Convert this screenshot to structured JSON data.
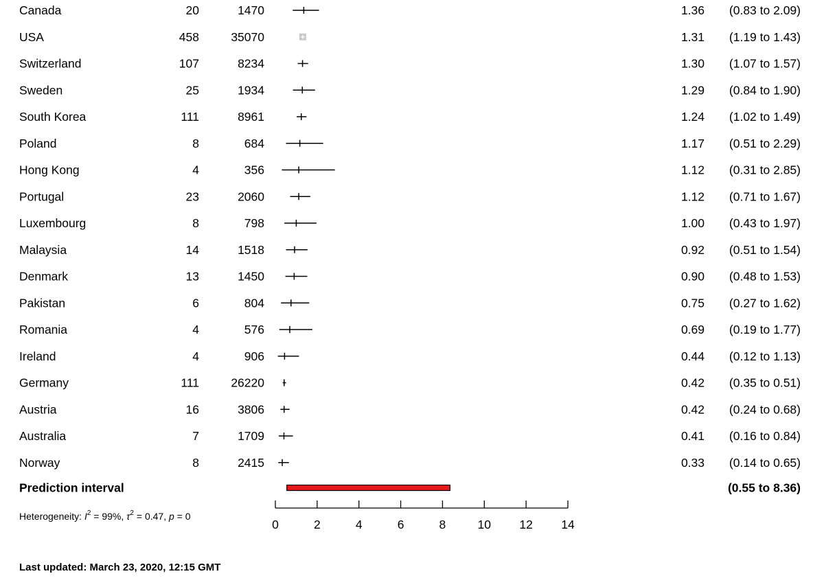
{
  "chart_data": {
    "type": "forest",
    "x_ticks": [
      0,
      2,
      4,
      6,
      8,
      10,
      12,
      14
    ],
    "xlim": [
      0,
      14
    ],
    "rows": [
      {
        "label": "Canada",
        "n1": "20",
        "n2": "1470",
        "est": 1.36,
        "lo": 0.83,
        "hi": 2.09,
        "est_text": "1.36",
        "ci_text": "(0.83 to 2.09)",
        "marker": "tick"
      },
      {
        "label": "USA",
        "n1": "458",
        "n2": "35070",
        "est": 1.31,
        "lo": 1.19,
        "hi": 1.43,
        "est_text": "1.31",
        "ci_text": "(1.19 to 1.43)",
        "marker": "box"
      },
      {
        "label": "Switzerland",
        "n1": "107",
        "n2": "8234",
        "est": 1.3,
        "lo": 1.07,
        "hi": 1.57,
        "est_text": "1.30",
        "ci_text": "(1.07 to 1.57)",
        "marker": "tick"
      },
      {
        "label": "Sweden",
        "n1": "25",
        "n2": "1934",
        "est": 1.29,
        "lo": 0.84,
        "hi": 1.9,
        "est_text": "1.29",
        "ci_text": "(0.84 to 1.90)",
        "marker": "tick"
      },
      {
        "label": "South Korea",
        "n1": "111",
        "n2": "8961",
        "est": 1.24,
        "lo": 1.02,
        "hi": 1.49,
        "est_text": "1.24",
        "ci_text": "(1.02 to 1.49)",
        "marker": "tick"
      },
      {
        "label": "Poland",
        "n1": "8",
        "n2": "684",
        "est": 1.17,
        "lo": 0.51,
        "hi": 2.29,
        "est_text": "1.17",
        "ci_text": "(0.51 to 2.29)",
        "marker": "tick"
      },
      {
        "label": "Hong Kong",
        "n1": "4",
        "n2": "356",
        "est": 1.12,
        "lo": 0.31,
        "hi": 2.85,
        "est_text": "1.12",
        "ci_text": "(0.31 to 2.85)",
        "marker": "tick"
      },
      {
        "label": "Portugal",
        "n1": "23",
        "n2": "2060",
        "est": 1.12,
        "lo": 0.71,
        "hi": 1.67,
        "est_text": "1.12",
        "ci_text": "(0.71 to 1.67)",
        "marker": "tick"
      },
      {
        "label": "Luxembourg",
        "n1": "8",
        "n2": "798",
        "est": 1.0,
        "lo": 0.43,
        "hi": 1.97,
        "est_text": "1.00",
        "ci_text": "(0.43 to 1.97)",
        "marker": "tick"
      },
      {
        "label": "Malaysia",
        "n1": "14",
        "n2": "1518",
        "est": 0.92,
        "lo": 0.51,
        "hi": 1.54,
        "est_text": "0.92",
        "ci_text": "(0.51 to 1.54)",
        "marker": "tick"
      },
      {
        "label": "Denmark",
        "n1": "13",
        "n2": "1450",
        "est": 0.9,
        "lo": 0.48,
        "hi": 1.53,
        "est_text": "0.90",
        "ci_text": "(0.48 to 1.53)",
        "marker": "tick"
      },
      {
        "label": "Pakistan",
        "n1": "6",
        "n2": "804",
        "est": 0.75,
        "lo": 0.27,
        "hi": 1.62,
        "est_text": "0.75",
        "ci_text": "(0.27 to 1.62)",
        "marker": "tick"
      },
      {
        "label": "Romania",
        "n1": "4",
        "n2": "576",
        "est": 0.69,
        "lo": 0.19,
        "hi": 1.77,
        "est_text": "0.69",
        "ci_text": "(0.19 to 1.77)",
        "marker": "tick"
      },
      {
        "label": "Ireland",
        "n1": "4",
        "n2": "906",
        "est": 0.44,
        "lo": 0.12,
        "hi": 1.13,
        "est_text": "0.44",
        "ci_text": "(0.12 to 1.13)",
        "marker": "tick"
      },
      {
        "label": "Germany",
        "n1": "111",
        "n2": "26220",
        "est": 0.42,
        "lo": 0.35,
        "hi": 0.51,
        "est_text": "0.42",
        "ci_text": "(0.35 to 0.51)",
        "marker": "tick"
      },
      {
        "label": "Austria",
        "n1": "16",
        "n2": "3806",
        "est": 0.42,
        "lo": 0.24,
        "hi": 0.68,
        "est_text": "0.42",
        "ci_text": "(0.24 to 0.68)",
        "marker": "tick"
      },
      {
        "label": "Australia",
        "n1": "7",
        "n2": "1709",
        "est": 0.41,
        "lo": 0.16,
        "hi": 0.84,
        "est_text": "0.41",
        "ci_text": "(0.16 to 0.84)",
        "marker": "tick"
      },
      {
        "label": "Norway",
        "n1": "8",
        "n2": "2415",
        "est": 0.33,
        "lo": 0.14,
        "hi": 0.65,
        "est_text": "0.33",
        "ci_text": "(0.14 to 0.65)",
        "marker": "tick"
      }
    ],
    "prediction_interval": {
      "label": "Prediction interval",
      "lo": 0.55,
      "hi": 8.36,
      "ci_text": "(0.55 to 8.36)",
      "color": "#e8191b"
    },
    "heterogeneity": {
      "prefix": "Heterogeneity: ",
      "i2_symbol": "I",
      "i2_value": " = 99%, ",
      "tau_symbol": "τ",
      "tau_value": " = 0.47, ",
      "p_symbol": "p",
      "p_value": " = 0",
      "superscript": "2"
    }
  },
  "footer": {
    "last_updated": "Last updated: March 23, 2020, 12:15 GMT"
  }
}
